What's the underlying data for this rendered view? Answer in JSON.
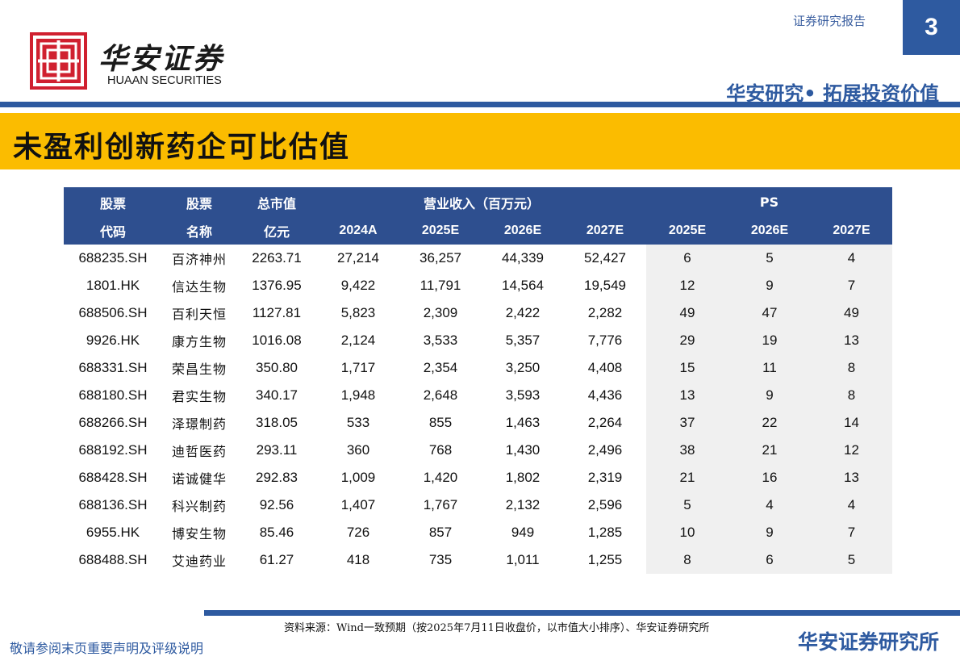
{
  "header": {
    "logo_cn": "华安证券",
    "logo_en": "HUAAN SECURITIES",
    "report_type": "证券研究报告",
    "page_number": "3",
    "slogan": "华安研究• 拓展投资价值",
    "brand_color": "#2e5aa0",
    "logo_color": "#d0202f",
    "band_color": "#fbbc00"
  },
  "title": "未盈利创新药企可比估值",
  "table": {
    "headers": {
      "code_top": "股票",
      "code_bottom": "代码",
      "name_top": "股票",
      "name_bottom": "名称",
      "mcap_top": "总市值",
      "mcap_bottom": "亿元",
      "revenue_group": "营业收入（百万元）",
      "ps_group": "PS",
      "rev_years": [
        "2024A",
        "2025E",
        "2026E",
        "2027E"
      ],
      "ps_years": [
        "2025E",
        "2026E",
        "2027E"
      ]
    },
    "rows": [
      [
        "688235.SH",
        "百济神州",
        "2263.71",
        "27,214",
        "36,257",
        "44,339",
        "52,427",
        "6",
        "5",
        "4"
      ],
      [
        "1801.HK",
        "信达生物",
        "1376.95",
        "9,422",
        "11,791",
        "14,564",
        "19,549",
        "12",
        "9",
        "7"
      ],
      [
        "688506.SH",
        "百利天恒",
        "1127.81",
        "5,823",
        "2,309",
        "2,422",
        "2,282",
        "49",
        "47",
        "49"
      ],
      [
        "9926.HK",
        "康方生物",
        "1016.08",
        "2,124",
        "3,533",
        "5,357",
        "7,776",
        "29",
        "19",
        "13"
      ],
      [
        "688331.SH",
        "荣昌生物",
        "350.80",
        "1,717",
        "2,354",
        "3,250",
        "4,408",
        "15",
        "11",
        "8"
      ],
      [
        "688180.SH",
        "君实生物",
        "340.17",
        "1,948",
        "2,648",
        "3,593",
        "4,436",
        "13",
        "9",
        "8"
      ],
      [
        "688266.SH",
        "泽璟制药",
        "318.05",
        "533",
        "855",
        "1,463",
        "2,264",
        "37",
        "22",
        "14"
      ],
      [
        "688192.SH",
        "迪哲医药",
        "293.11",
        "360",
        "768",
        "1,430",
        "2,496",
        "38",
        "21",
        "12"
      ],
      [
        "688428.SH",
        "诺诚健华",
        "292.83",
        "1,009",
        "1,420",
        "1,802",
        "2,319",
        "21",
        "16",
        "13"
      ],
      [
        "688136.SH",
        "科兴制药",
        "92.56",
        "1,407",
        "1,767",
        "2,132",
        "2,596",
        "5",
        "4",
        "4"
      ],
      [
        "6955.HK",
        "博安生物",
        "85.46",
        "726",
        "857",
        "949",
        "1,285",
        "10",
        "9",
        "7"
      ],
      [
        "688488.SH",
        "艾迪药业",
        "61.27",
        "418",
        "735",
        "1,011",
        "1,255",
        "8",
        "6",
        "5"
      ]
    ]
  },
  "footer": {
    "source": "资料来源：Wind一致预期（按2025年7月11日收盘价，以市值大小排序）、华安证券研究所",
    "disclaimer": "敬请参阅末页重要声明及评级说明",
    "institute": "华安证券研究所"
  }
}
